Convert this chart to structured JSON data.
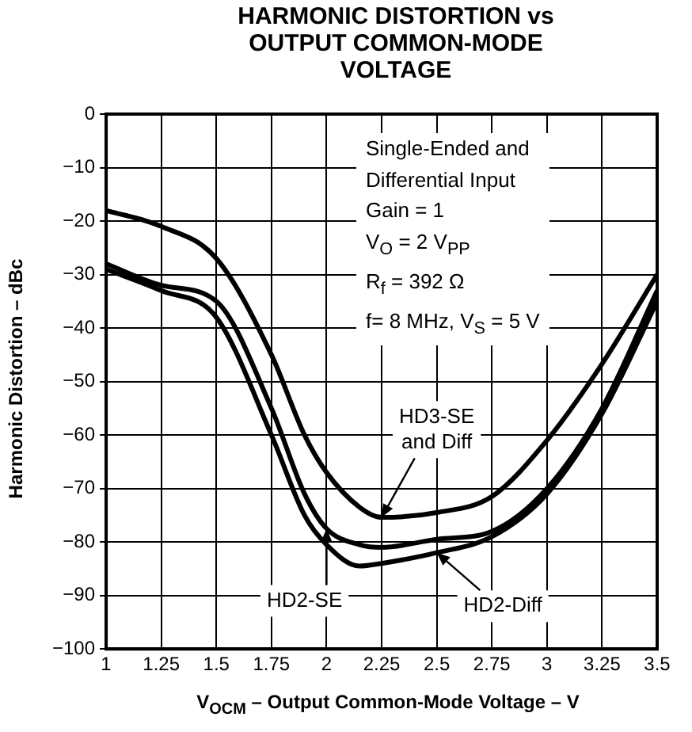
{
  "chart_data": {
    "type": "line",
    "title": "HARMONIC DISTORTION vs OUTPUT COMMON-MODE VOLTAGE",
    "xlabel": "V$_{OCM}$ – Output Common-Mode Voltage – V",
    "ylabel": "Harmonic Distortion – dBc",
    "x": [
      1,
      1.25,
      1.5,
      1.75,
      1.9,
      2,
      2.15,
      2.25,
      2.5,
      2.75,
      3,
      3.25,
      3.5
    ],
    "series": [
      {
        "name": "HD3-SE and Diff",
        "color": "#000000",
        "values": [
          -18,
          -21,
          -27,
          -45,
          -60,
          -67,
          -73.5,
          -75.4,
          -74.5,
          -71.5,
          -61,
          -46.7,
          -30
        ]
      },
      {
        "name": "HD2-SE",
        "color": "#000000",
        "values": [
          -28,
          -32,
          -35,
          -55,
          -71,
          -77.5,
          -80.5,
          -81,
          -79.5,
          -78,
          -70,
          -55,
          -33
        ]
      },
      {
        "name": "HD2-Diff",
        "color": "#000000",
        "values": [
          -29,
          -33,
          -38,
          -60,
          -75,
          -80.5,
          -84.5,
          -84,
          -82,
          -79,
          -71,
          -56,
          -35
        ]
      }
    ],
    "xlim": [
      1,
      3.5
    ],
    "xticks": [
      1,
      1.25,
      1.5,
      1.75,
      2,
      2.25,
      2.5,
      2.75,
      3,
      3.25,
      3.5
    ],
    "ylim": [
      -100,
      0
    ],
    "yticks": [
      0,
      -10,
      -20,
      -30,
      -40,
      -50,
      -60,
      -70,
      -80,
      -90,
      -100
    ],
    "grid": true,
    "marker": "none",
    "line_style": "solid",
    "annotations": [
      "Single-Ended and",
      "Differential Input",
      "Gain = 1",
      "V$_{O}$ = 2 V$_{PP}$",
      "R$_{f}$ = 392 Ω",
      "f= 8 MHz, V$_{S}$ = 5 V"
    ]
  }
}
